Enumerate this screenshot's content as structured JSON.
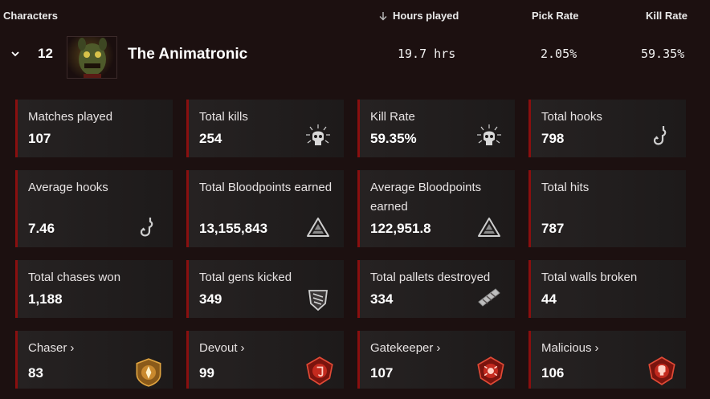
{
  "table_header": {
    "characters": "Characters",
    "hours_played": "Hours played",
    "pick_rate": "Pick Rate",
    "kill_rate": "Kill Rate"
  },
  "character": {
    "rank": "12",
    "name": "The Animatronic",
    "hours": "19.7 hrs",
    "pick_rate": "2.05%",
    "kill_rate": "59.35%"
  },
  "stats": {
    "matches_played": {
      "label": "Matches played",
      "value": "107"
    },
    "total_kills": {
      "label": "Total kills",
      "value": "254",
      "icon": "skull-icon"
    },
    "kill_rate": {
      "label": "Kill Rate",
      "value": "59.35%",
      "icon": "skull-icon"
    },
    "total_hooks": {
      "label": "Total hooks",
      "value": "798",
      "icon": "hook-icon"
    },
    "average_hooks": {
      "label": "Average hooks",
      "value": "7.46",
      "icon": "hook-icon"
    },
    "total_bloodpoints": {
      "label": "Total Bloodpoints earned",
      "value": "13,155,843",
      "icon": "bloodpoints-icon"
    },
    "average_bloodpoints": {
      "label": "Average Bloodpoints earned",
      "value": "122,951.8",
      "icon": "bloodpoints-icon"
    },
    "total_hits": {
      "label": "Total hits",
      "value": "787"
    },
    "chases_won": {
      "label": "Total chases won",
      "value": "1,188"
    },
    "gens_kicked": {
      "label": "Total gens kicked",
      "value": "349",
      "icon": "generator-icon"
    },
    "pallets_destroyed": {
      "label": "Total pallets destroyed",
      "value": "334",
      "icon": "pallet-icon"
    },
    "walls_broken": {
      "label": "Total walls broken",
      "value": "44"
    },
    "chaser": {
      "label": "Chaser",
      "value": "83",
      "icon": "chaser-emblem-icon",
      "color": "#c9892e"
    },
    "devout": {
      "label": "Devout",
      "value": "99",
      "icon": "devout-emblem-icon",
      "color": "#c42a1e"
    },
    "gatekeeper": {
      "label": "Gatekeeper",
      "value": "107",
      "icon": "gatekeeper-emblem-icon",
      "color": "#c42a1e"
    },
    "malicious": {
      "label": "Malicious",
      "value": "106",
      "icon": "malicious-emblem-icon",
      "color": "#c42a1e"
    }
  }
}
